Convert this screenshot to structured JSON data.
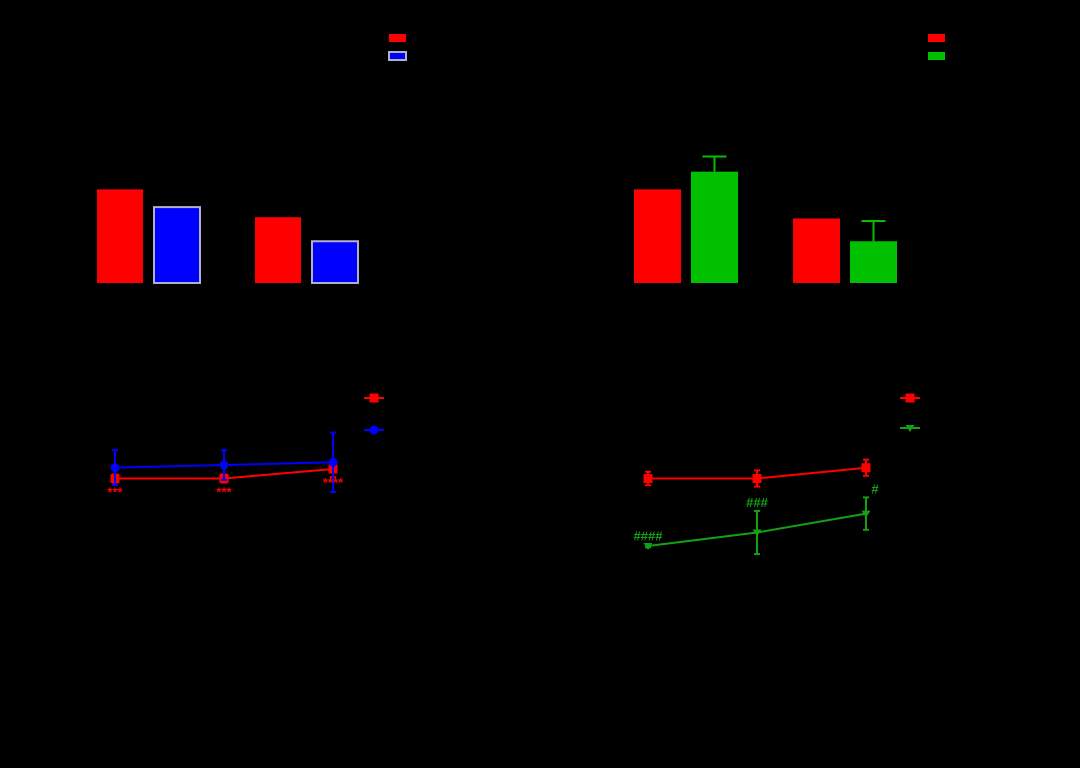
{
  "colors": {
    "background": "#000000",
    "red": "#ff0000",
    "blue": "#0000ff",
    "blue_edge": "#b0b0c8",
    "green": "#00c000",
    "line_green": "#14a014"
  },
  "chart_data": [
    {
      "panel": "top-left",
      "type": "bar",
      "title": "",
      "ylim": [
        0,
        100
      ],
      "groups": 2,
      "series": [
        {
          "name": "",
          "color": "#ff0000",
          "values": [
            37,
            26
          ],
          "errors": [
            0,
            0
          ]
        },
        {
          "name": "",
          "color": "#0000ff",
          "values": [
            30,
            16.5
          ],
          "errors": [
            0,
            0
          ]
        }
      ],
      "legend": "top-right"
    },
    {
      "panel": "top-right",
      "type": "bar",
      "title": "",
      "ylim": [
        0,
        100
      ],
      "groups": 2,
      "series": [
        {
          "name": "",
          "color": "#ff0000",
          "values": [
            37,
            25.5
          ],
          "errors": [
            0,
            0
          ]
        },
        {
          "name": "",
          "color": "#00c000",
          "values": [
            44,
            16.5
          ],
          "errors": [
            6,
            8
          ]
        }
      ],
      "legend": "top-right"
    },
    {
      "panel": "bottom-left",
      "type": "line",
      "title": "",
      "ylim": [
        0,
        100
      ],
      "x": [
        1,
        2,
        3
      ],
      "series": [
        {
          "name": "",
          "color": "#ff0000",
          "marker": "square",
          "values": [
            45,
            45,
            48.5
          ],
          "errors": [
            1.5,
            1.5,
            3
          ]
        },
        {
          "name": "",
          "color": "#0000ff",
          "marker": "circle",
          "values": [
            49,
            50,
            51
          ],
          "errors": [
            6.5,
            5.5,
            11
          ]
        }
      ],
      "annotations": [
        {
          "text": "***",
          "color": "#ff0000",
          "x": 1
        },
        {
          "text": "***",
          "color": "#ff0000",
          "x": 2
        },
        {
          "text": "****",
          "color": "#ff0000",
          "x": 3
        }
      ],
      "legend": "right"
    },
    {
      "panel": "bottom-right",
      "type": "line",
      "title": "",
      "ylim": [
        0,
        100
      ],
      "x": [
        1,
        2,
        3
      ],
      "series": [
        {
          "name": "",
          "color": "#ff0000",
          "marker": "square",
          "values": [
            45,
            45,
            49
          ],
          "errors": [
            2.5,
            3,
            3
          ]
        },
        {
          "name": "",
          "color": "#14a014",
          "marker": "triangle-down",
          "values": [
            20,
            25,
            32
          ],
          "errors": [
            0.5,
            8,
            6
          ]
        }
      ],
      "annotations": [
        {
          "text": "####",
          "color": "#14a014",
          "x": 1
        },
        {
          "text": "###",
          "color": "#14a014",
          "x": 2
        },
        {
          "text": "#",
          "color": "#14a014",
          "x": 3
        }
      ],
      "legend": "right"
    }
  ]
}
